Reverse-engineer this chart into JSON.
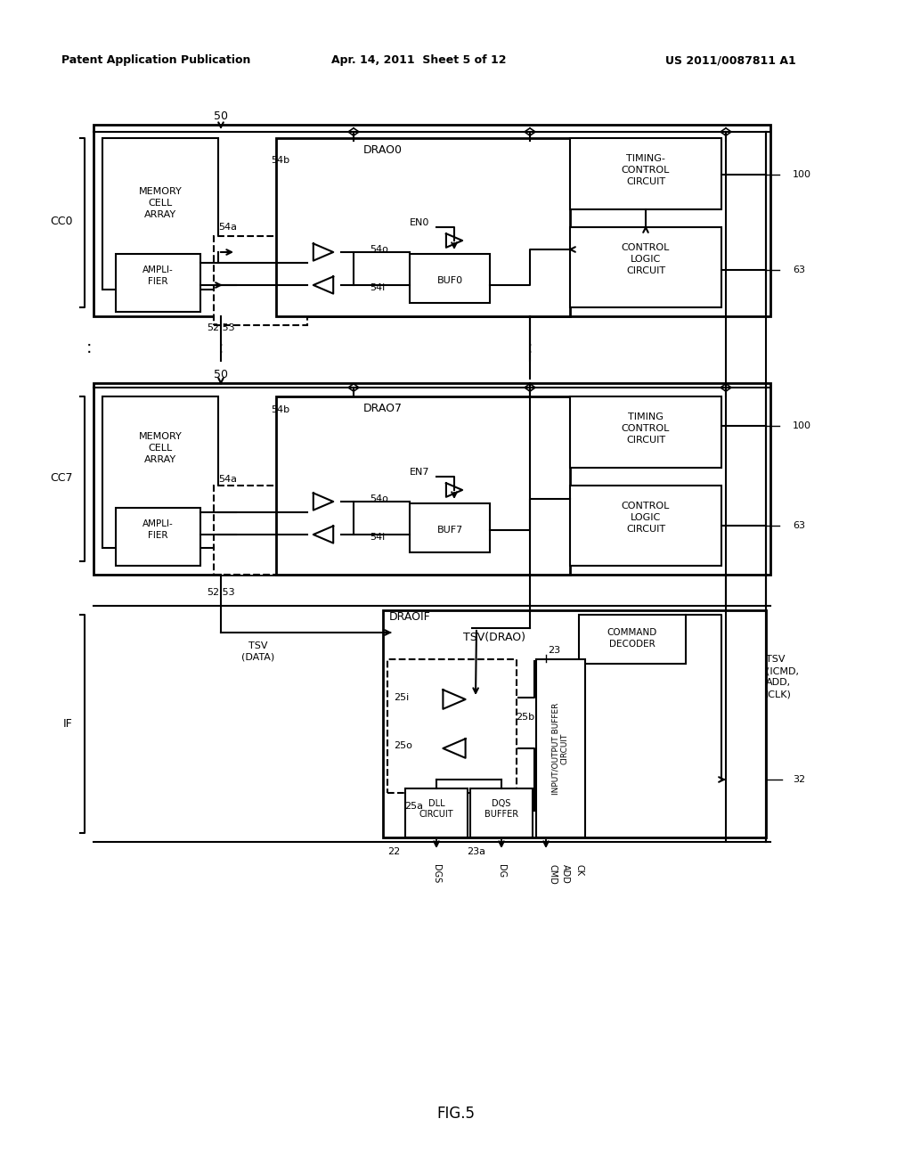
{
  "title": "FIG.5",
  "header_left": "Patent Application Publication",
  "header_mid": "Apr. 14, 2011  Sheet 5 of 12",
  "header_right": "US 2011/0087811 A1",
  "bg_color": "#ffffff",
  "fg_color": "#000000"
}
